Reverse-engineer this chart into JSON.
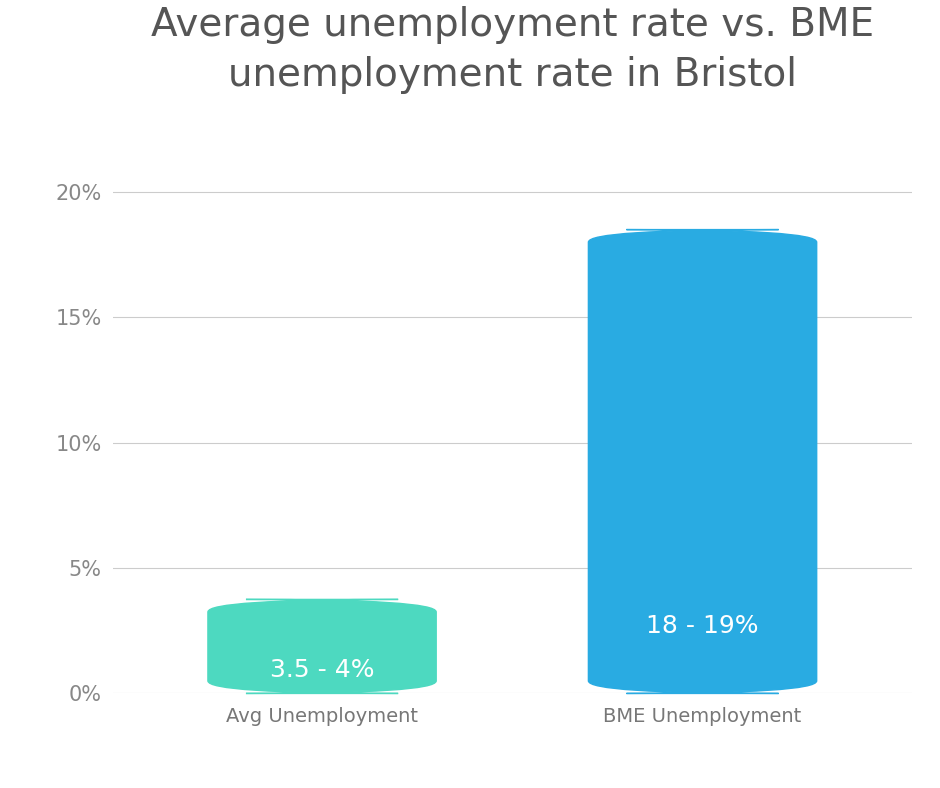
{
  "title": "Average unemployment rate vs. BME\nunemployment rate in Bristol",
  "categories": [
    "Avg Unemployment",
    "BME Unemployment"
  ],
  "values": [
    3.75,
    18.5
  ],
  "bar_colors": [
    "#4DD9C0",
    "#29ABE2"
  ],
  "bar_labels": [
    "3.5 - 4%",
    "18 - 19%"
  ],
  "label_color": "#FFFFFF",
  "label_fontsize": 18,
  "title_fontsize": 28,
  "title_color": "#555555",
  "tick_label_color": "#888888",
  "tick_label_fontsize": 15,
  "xlabel_fontsize": 14,
  "xlabel_color": "#777777",
  "background_color": "#FFFFFF",
  "ylim": [
    0,
    22
  ],
  "yticks": [
    0,
    5,
    10,
    15,
    20
  ],
  "ytick_labels": [
    "0%",
    "5%",
    "10%",
    "15%",
    "20%"
  ],
  "grid_color": "#CCCCCC",
  "bar_width": 0.6,
  "rounding_size": 0.5
}
